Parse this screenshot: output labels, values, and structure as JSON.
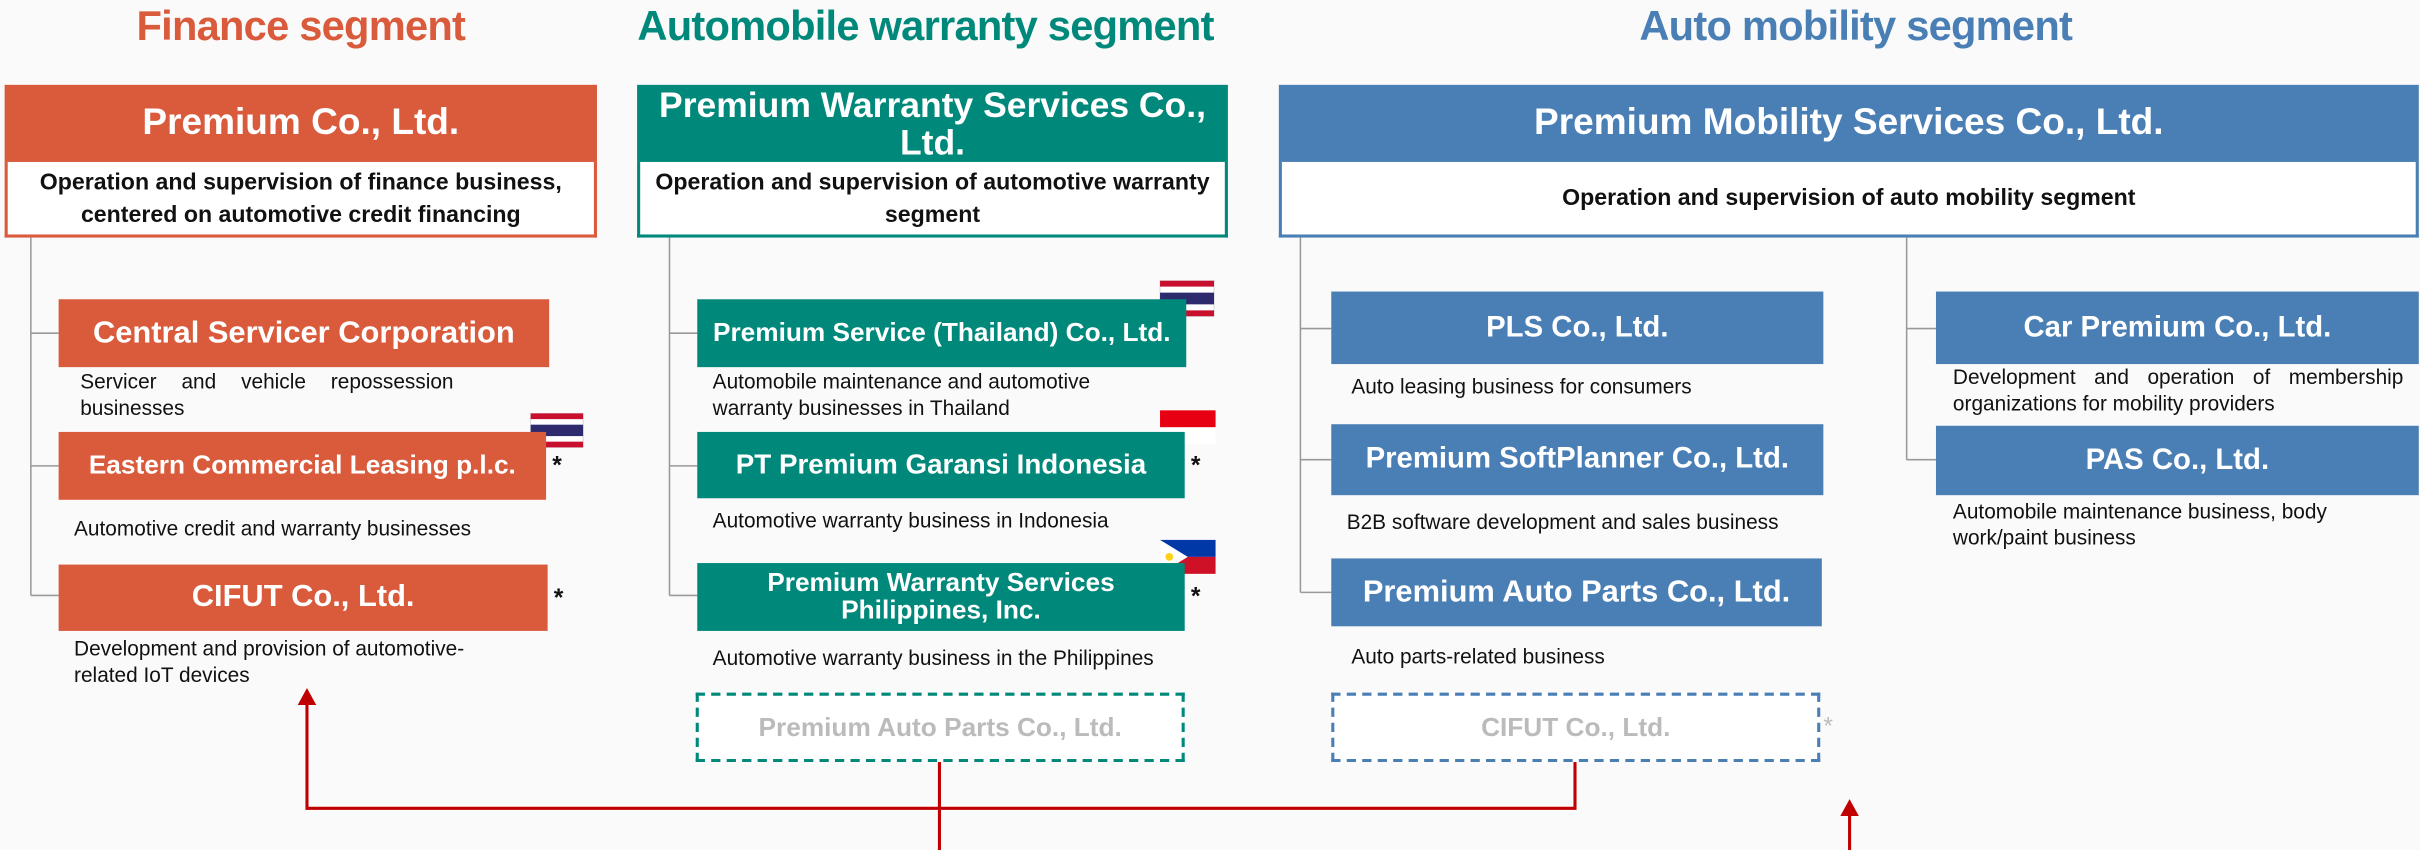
{
  "segments": [
    {
      "title": "Finance segment",
      "company": {
        "name": "Premium Co., Ltd.",
        "description": "Operation and supervision of finance business, centered on automotive credit financing"
      },
      "subsidiaries": [
        {
          "name": "Central Servicer Corporation",
          "description": "Servicer and vehicle repossession businesses"
        },
        {
          "name": "Eastern Commercial Leasing p.l.c.",
          "mark": "*",
          "description": "Automotive credit and warranty businesses"
        },
        {
          "name": "CIFUT Co., Ltd.",
          "mark": "*",
          "description": "Development and provision of automotive-related IoT devices"
        }
      ]
    },
    {
      "title": "Automobile warranty segment",
      "company": {
        "name": "Premium Warranty Services Co., Ltd.",
        "description": "Operation and supervision of automotive warranty segment"
      },
      "subsidiaries": [
        {
          "name": "Premium Service (Thailand) Co., Ltd.",
          "description": "Automobile maintenance and automotive warranty businesses in Thailand"
        },
        {
          "name": "PT Premium Garansi Indonesia",
          "mark": "*",
          "description": "Automotive warranty business in Indonesia"
        },
        {
          "name": "Premium Warranty Services Philippines, Inc.",
          "mark": "*",
          "description": "Automotive warranty business in the Philippines"
        }
      ],
      "planned": {
        "name": "Premium Auto Parts Co., Ltd."
      }
    },
    {
      "title": "Auto mobility segment",
      "company": {
        "name": "Premium Mobility Services Co., Ltd.",
        "description": "Operation and supervision of auto mobility segment"
      },
      "subsidiaries": [
        {
          "name": "PLS Co., Ltd.",
          "description": "Auto leasing business for consumers"
        },
        {
          "name": "Premium SoftPlanner Co., Ltd.",
          "description": "B2B software development and sales business"
        },
        {
          "name": "Premium Auto Parts Co., Ltd.",
          "description": "Auto parts-related business"
        },
        {
          "name": "Car Premium Co., Ltd.",
          "description": "Development and operation of membership organizations for mobility providers"
        },
        {
          "name": "PAS Co., Ltd.",
          "description": "Automobile maintenance business, body work/paint business"
        }
      ],
      "planned": {
        "name": "CIFUT Co., Ltd.",
        "mark": "*"
      }
    }
  ]
}
